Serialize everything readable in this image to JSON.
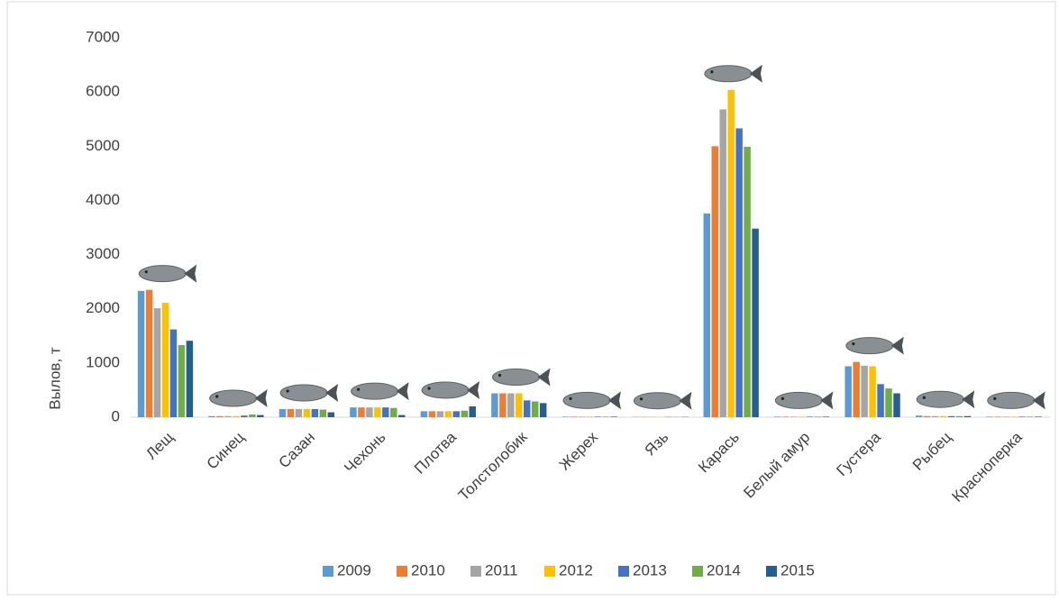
{
  "chart_data": {
    "type": "bar",
    "y_label": "Вылов, т",
    "categories": [
      "Лещ",
      "Синец",
      "Сазан",
      "Чехонь",
      "Плотва",
      "Толстолобик",
      "Жерех",
      "Язь",
      "Карась",
      "Белый амур",
      "Густера",
      "Рыбец",
      "Красноперка"
    ],
    "series": [
      {
        "name": "2009",
        "color": "#5b9bd5",
        "values": [
          2330,
          20,
          150,
          180,
          110,
          440,
          10,
          5,
          3760,
          10,
          940,
          30,
          10
        ]
      },
      {
        "name": "2010",
        "color": "#ed7d31",
        "values": [
          2350,
          20,
          150,
          180,
          110,
          440,
          10,
          5,
          5000,
          10,
          1020,
          20,
          10
        ]
      },
      {
        "name": "2011",
        "color": "#a5a5a5",
        "values": [
          2010,
          20,
          150,
          180,
          110,
          440,
          10,
          5,
          5680,
          10,
          950,
          20,
          10
        ]
      },
      {
        "name": "2012",
        "color": "#ffc000",
        "values": [
          2110,
          20,
          150,
          180,
          110,
          440,
          10,
          5,
          6040,
          10,
          940,
          20,
          10
        ]
      },
      {
        "name": "2013",
        "color": "#4472c4",
        "values": [
          1620,
          30,
          150,
          180,
          110,
          310,
          10,
          5,
          5330,
          10,
          610,
          20,
          10
        ]
      },
      {
        "name": "2014",
        "color": "#70ad47",
        "values": [
          1330,
          50,
          140,
          170,
          120,
          290,
          10,
          5,
          4990,
          10,
          530,
          20,
          10
        ]
      },
      {
        "name": "2015",
        "color": "#255e91",
        "values": [
          1410,
          40,
          90,
          40,
          200,
          260,
          10,
          5,
          3480,
          10,
          440,
          20,
          10
        ]
      }
    ],
    "ylim": [
      0,
      7000
    ],
    "yticks": [
      0,
      1000,
      2000,
      3000,
      4000,
      5000,
      6000,
      7000
    ],
    "grid": false,
    "legend": "bottom"
  }
}
